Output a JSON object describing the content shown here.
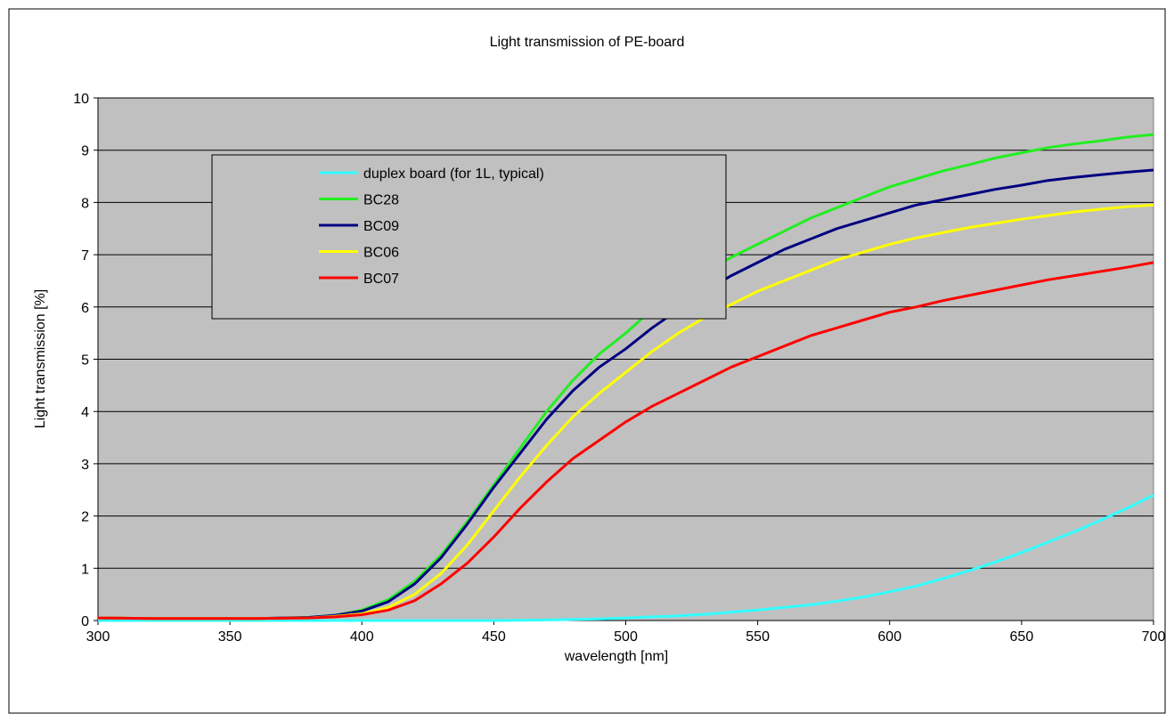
{
  "chart_data": {
    "type": "line",
    "title": "Light transmission of PE-board",
    "xlabel": "wavelength [nm]",
    "ylabel": "Light transmission [%]",
    "xlim": [
      300,
      700
    ],
    "ylim": [
      0,
      10
    ],
    "x_ticks": [
      "300",
      "350",
      "400",
      "450",
      "500",
      "550",
      "600",
      "650",
      "700"
    ],
    "y_ticks": [
      "0",
      "1",
      "2",
      "3",
      "4",
      "5",
      "6",
      "7",
      "8",
      "9",
      "10"
    ],
    "grid": "horizontal",
    "plot_background": "#c0c0c0",
    "legend_position": "upper-left inside",
    "x": [
      300,
      320,
      340,
      360,
      380,
      390,
      400,
      410,
      420,
      430,
      440,
      450,
      460,
      470,
      480,
      490,
      500,
      510,
      520,
      530,
      540,
      550,
      560,
      570,
      580,
      590,
      600,
      610,
      620,
      630,
      640,
      650,
      660,
      670,
      680,
      690,
      700
    ],
    "series": [
      {
        "name": "duplex board (for 1L, typical)",
        "color": "#33ffff",
        "values": [
          0,
          0,
          0,
          0,
          0,
          0,
          0,
          0,
          0,
          0,
          0,
          0,
          0.005,
          0.01,
          0.02,
          0.03,
          0.05,
          0.07,
          0.09,
          0.12,
          0.16,
          0.2,
          0.25,
          0.3,
          0.37,
          0.45,
          0.55,
          0.66,
          0.8,
          0.95,
          1.12,
          1.3,
          1.5,
          1.7,
          1.92,
          2.15,
          2.4
        ]
      },
      {
        "name": "BC28",
        "color": "#22ee22",
        "values": [
          0.05,
          0.04,
          0.04,
          0.04,
          0.06,
          0.1,
          0.2,
          0.4,
          0.75,
          1.25,
          1.9,
          2.6,
          3.3,
          4.0,
          4.6,
          5.1,
          5.5,
          5.95,
          6.3,
          6.65,
          6.95,
          7.2,
          7.45,
          7.7,
          7.9,
          8.1,
          8.3,
          8.45,
          8.6,
          8.72,
          8.85,
          8.95,
          9.05,
          9.12,
          9.18,
          9.25,
          9.3
        ]
      },
      {
        "name": "BC09",
        "color": "#000080",
        "values": [
          0.05,
          0.04,
          0.04,
          0.04,
          0.06,
          0.1,
          0.18,
          0.36,
          0.7,
          1.2,
          1.85,
          2.55,
          3.2,
          3.85,
          4.4,
          4.85,
          5.2,
          5.6,
          5.95,
          6.3,
          6.6,
          6.85,
          7.1,
          7.3,
          7.5,
          7.65,
          7.8,
          7.95,
          8.05,
          8.15,
          8.25,
          8.33,
          8.42,
          8.48,
          8.53,
          8.58,
          8.62
        ]
      },
      {
        "name": "BC06",
        "color": "#ffff00",
        "values": [
          0.05,
          0.04,
          0.04,
          0.04,
          0.05,
          0.08,
          0.13,
          0.25,
          0.5,
          0.9,
          1.45,
          2.1,
          2.75,
          3.35,
          3.9,
          4.35,
          4.75,
          5.15,
          5.5,
          5.8,
          6.05,
          6.3,
          6.5,
          6.7,
          6.9,
          7.05,
          7.2,
          7.32,
          7.42,
          7.52,
          7.6,
          7.68,
          7.75,
          7.82,
          7.87,
          7.92,
          7.95
        ]
      },
      {
        "name": "BC07",
        "color": "#ff0000",
        "values": [
          0.05,
          0.04,
          0.04,
          0.04,
          0.05,
          0.07,
          0.11,
          0.2,
          0.38,
          0.7,
          1.1,
          1.6,
          2.15,
          2.65,
          3.1,
          3.45,
          3.8,
          4.1,
          4.35,
          4.6,
          4.85,
          5.05,
          5.25,
          5.45,
          5.6,
          5.75,
          5.9,
          6.0,
          6.12,
          6.22,
          6.32,
          6.42,
          6.52,
          6.6,
          6.68,
          6.76,
          6.85
        ]
      }
    ]
  }
}
